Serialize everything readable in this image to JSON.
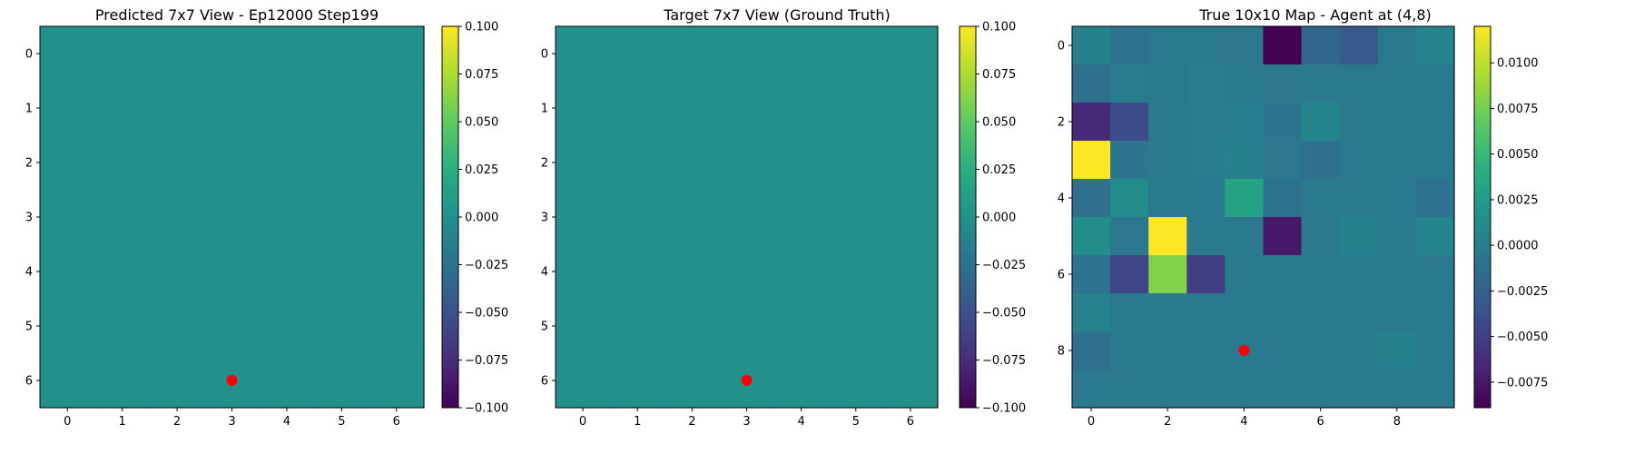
{
  "chart_data": [
    {
      "type": "heatmap",
      "title": "Predicted 7x7 View - Ep12000 Step199",
      "rows": 7,
      "cols": 7,
      "values": [
        [
          0,
          0,
          0,
          0,
          0,
          0,
          0
        ],
        [
          0,
          0,
          0,
          0,
          0,
          0,
          0
        ],
        [
          0,
          0,
          0,
          0,
          0,
          0,
          0
        ],
        [
          0,
          0,
          0,
          0,
          0,
          0,
          0
        ],
        [
          0,
          0,
          0,
          0,
          0,
          0,
          0
        ],
        [
          0,
          0,
          0,
          0,
          0,
          0,
          0
        ],
        [
          0,
          0,
          0,
          0,
          0,
          0,
          0
        ]
      ],
      "x_ticks": [
        "0",
        "1",
        "2",
        "3",
        "4",
        "5",
        "6"
      ],
      "y_ticks": [
        "0",
        "1",
        "2",
        "3",
        "4",
        "5",
        "6"
      ],
      "colormap": "viridis",
      "vmin": -0.1,
      "vmax": 0.1,
      "colorbar_ticks": [
        "0.100",
        "0.075",
        "0.050",
        "0.025",
        "0.000",
        "−0.025",
        "−0.050",
        "−0.075",
        "−0.100"
      ],
      "colorbar_tick_values": [
        0.1,
        0.075,
        0.05,
        0.025,
        0,
        -0.025,
        -0.05,
        -0.075,
        -0.1
      ],
      "marker": {
        "x": 3,
        "y": 6,
        "color": "#ff0000"
      }
    },
    {
      "type": "heatmap",
      "title": "Target 7x7 View (Ground Truth)",
      "rows": 7,
      "cols": 7,
      "values": [
        [
          0,
          0,
          0,
          0,
          0,
          0,
          0
        ],
        [
          0,
          0,
          0,
          0,
          0,
          0,
          0
        ],
        [
          0,
          0,
          0,
          0,
          0,
          0,
          0
        ],
        [
          0,
          0,
          0,
          0,
          0,
          0,
          0
        ],
        [
          0,
          0,
          0,
          0,
          0,
          0,
          0
        ],
        [
          0,
          0,
          0,
          0,
          0,
          0,
          0
        ],
        [
          0,
          0,
          0,
          0,
          0,
          0,
          0
        ]
      ],
      "x_ticks": [
        "0",
        "1",
        "2",
        "3",
        "4",
        "5",
        "6"
      ],
      "y_ticks": [
        "0",
        "1",
        "2",
        "3",
        "4",
        "5",
        "6"
      ],
      "colormap": "viridis",
      "vmin": -0.1,
      "vmax": 0.1,
      "colorbar_ticks": [
        "0.100",
        "0.075",
        "0.050",
        "0.025",
        "0.000",
        "−0.025",
        "−0.050",
        "−0.075",
        "−0.100"
      ],
      "colorbar_tick_values": [
        0.1,
        0.075,
        0.05,
        0.025,
        0,
        -0.025,
        -0.05,
        -0.075,
        -0.1
      ],
      "marker": {
        "x": 3,
        "y": 6,
        "color": "#ff0000"
      }
    },
    {
      "type": "heatmap",
      "title": "True 10x10 Map - Agent at (4,8)",
      "rows": 10,
      "cols": 10,
      "values": [
        [
          0.0003,
          -0.001,
          -0.0005,
          -0.0005,
          -0.0006,
          -0.0089,
          -0.002,
          -0.003,
          -0.0005,
          0.0005
        ],
        [
          -0.0012,
          -0.0002,
          -0.0005,
          -0.0002,
          -0.0004,
          -0.0006,
          -0.0004,
          -0.0005,
          -0.0005,
          -0.0004
        ],
        [
          -0.0065,
          -0.004,
          -0.0004,
          -0.0002,
          0.0,
          -0.0008,
          0.0006,
          -0.0004,
          -0.0004,
          -0.0004
        ],
        [
          0.012,
          -0.0008,
          -0.0004,
          -0.0002,
          0.0002,
          -0.0006,
          -0.0012,
          -0.0004,
          -0.0004,
          -0.0004
        ],
        [
          -0.0012,
          0.0013,
          -0.0004,
          -0.0004,
          0.0033,
          -0.001,
          -0.0004,
          -0.0004,
          -0.0004,
          -0.001
        ],
        [
          0.0013,
          -0.0006,
          0.012,
          -0.0004,
          -0.0004,
          -0.0075,
          -0.0004,
          0.0003,
          -0.0004,
          0.0006
        ],
        [
          -0.001,
          -0.0045,
          0.008,
          -0.005,
          -0.0004,
          -0.0004,
          -0.0004,
          -0.0004,
          -0.0004,
          -0.0004
        ],
        [
          0.0004,
          -0.0004,
          -0.0004,
          -0.0004,
          -0.0004,
          -0.0004,
          -0.0004,
          -0.0004,
          -0.0004,
          -0.0004
        ],
        [
          -0.0012,
          -0.0004,
          -0.0004,
          -0.0004,
          -0.0004,
          -0.0004,
          -0.0004,
          -0.0004,
          0.0002,
          -0.0004
        ],
        [
          -0.0004,
          -0.0004,
          -0.0004,
          -0.0004,
          -0.0004,
          -0.0004,
          -0.0004,
          -0.0004,
          -0.0004,
          -0.0004
        ]
      ],
      "x_ticks": [
        "0",
        "2",
        "4",
        "6",
        "8"
      ],
      "x_tick_values": [
        0,
        2,
        4,
        6,
        8
      ],
      "y_ticks": [
        "0",
        "2",
        "4",
        "6",
        "8"
      ],
      "y_tick_values": [
        0,
        2,
        4,
        6,
        8
      ],
      "colormap": "viridis",
      "vmin": -0.0089,
      "vmax": 0.012,
      "colorbar_ticks": [
        "0.0100",
        "0.0075",
        "0.0050",
        "0.0025",
        "0.0000",
        "−0.0025",
        "−0.0050",
        "−0.0075"
      ],
      "colorbar_tick_values": [
        0.01,
        0.0075,
        0.005,
        0.0025,
        0,
        -0.0025,
        -0.005,
        -0.0075
      ],
      "marker": {
        "x": 4,
        "y": 8,
        "color": "#ff0000"
      }
    }
  ]
}
